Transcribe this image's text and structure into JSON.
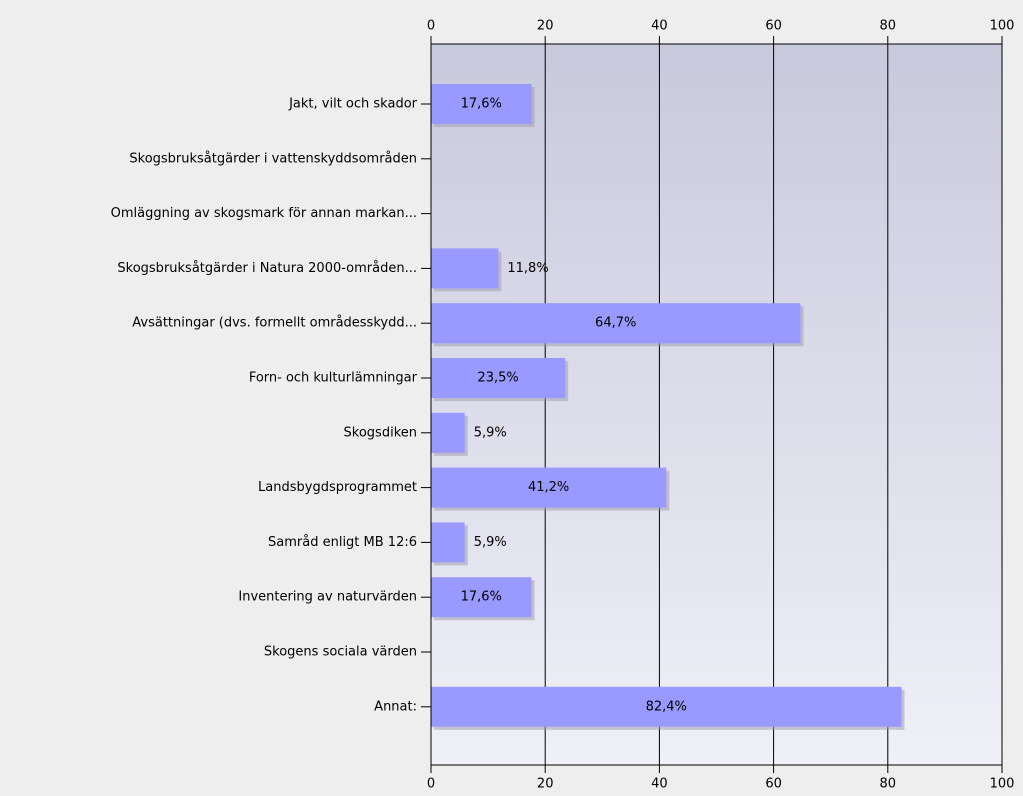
{
  "chart_data": {
    "type": "bar",
    "orientation": "horizontal",
    "categories": [
      "Jakt, vilt och skador",
      "Skogsbruksåtgärder i vattenskyddsområden",
      "Omläggning av skogsmark för annan markan...",
      "Skogsbruksåtgärder i Natura 2000-områden...",
      "Avsättningar (dvs. formellt områdesskydd...",
      "Forn- och kulturlämningar",
      "Skogsdiken",
      "Landsbygdsprogrammet",
      "Samråd enligt MB 12:6",
      "Inventering av naturvärden",
      "Skogens sociala värden",
      "Annat:"
    ],
    "values": [
      17.6,
      0,
      0,
      11.8,
      64.7,
      23.5,
      5.9,
      41.2,
      5.9,
      17.6,
      0,
      82.4
    ],
    "value_labels": [
      "17,6%",
      null,
      null,
      "11,8%",
      "64,7%",
      "23,5%",
      "5,9%",
      "41,2%",
      "5,9%",
      "17,6%",
      null,
      "82,4%"
    ],
    "color": "#9999ff",
    "xlim": [
      0,
      100
    ],
    "xticks": [
      0,
      20,
      40,
      60,
      80,
      100
    ],
    "grid": true
  }
}
